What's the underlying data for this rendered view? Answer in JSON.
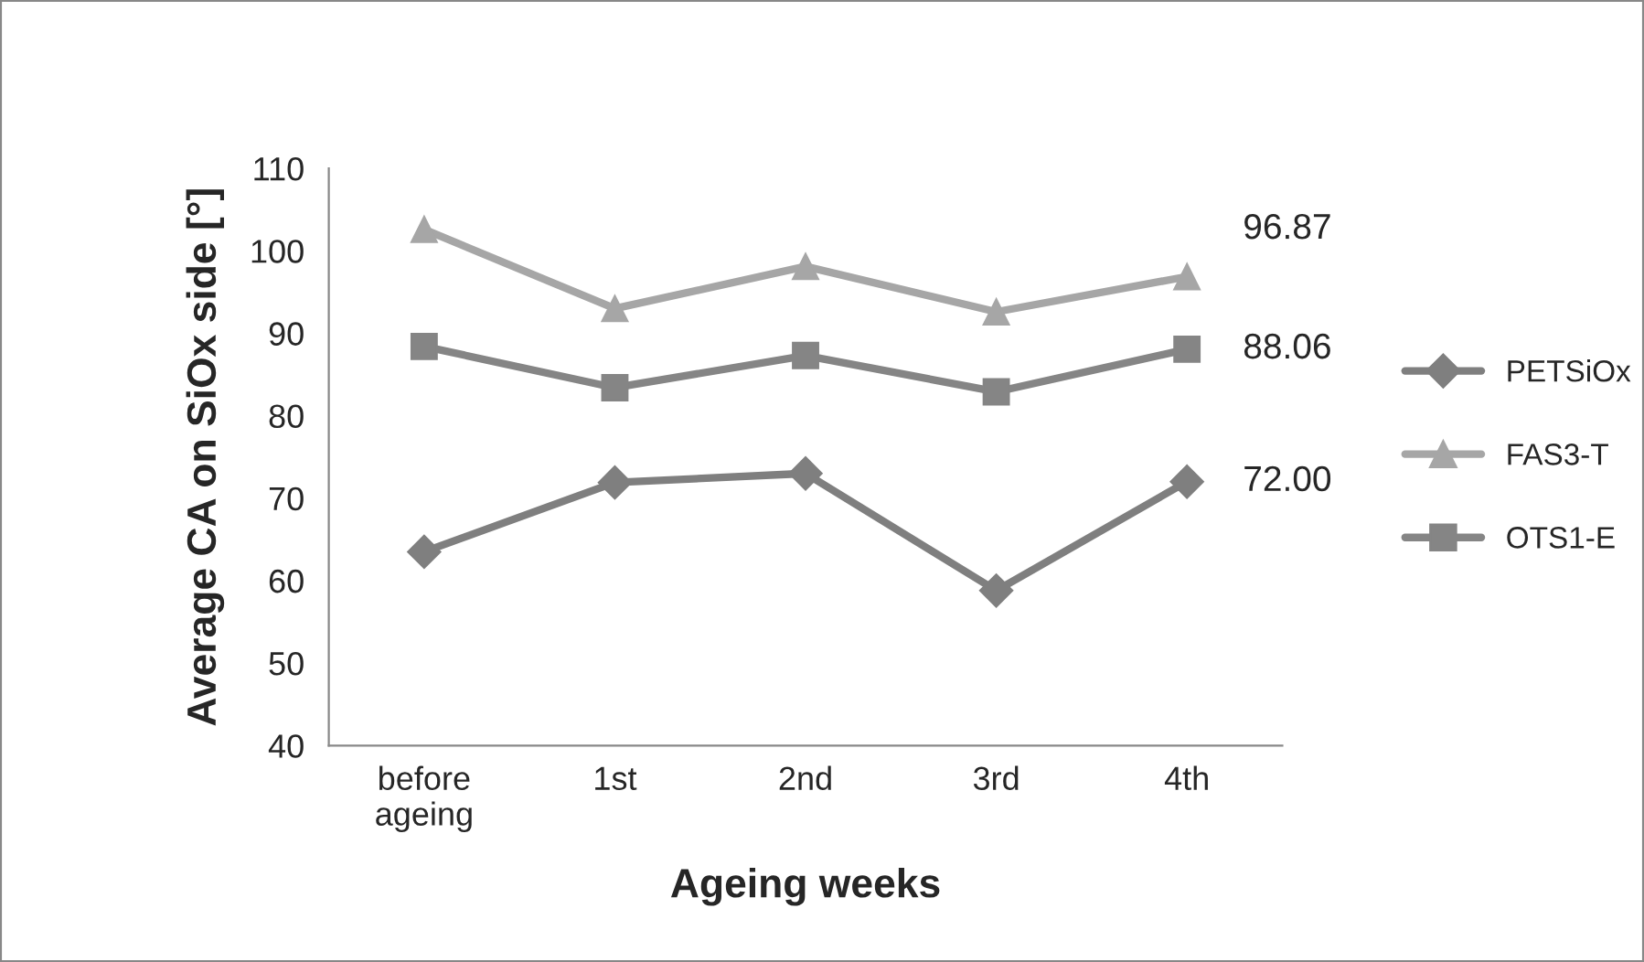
{
  "chart_data": {
    "type": "line",
    "xlabel": "Ageing weeks",
    "ylabel": "Average CA on SiOx side [°]",
    "categories": [
      "before\nageing",
      "1st",
      "2nd",
      "3rd",
      "4th"
    ],
    "ylim": [
      40,
      110
    ],
    "yticks": [
      40,
      50,
      60,
      70,
      80,
      90,
      100,
      110
    ],
    "grid": false,
    "legend": "right",
    "series": [
      {
        "name": "PETSiOx",
        "color": "#7f7f7f",
        "marker": "diamond",
        "values": [
          63.5,
          71.9,
          73.0,
          58.8,
          72.0
        ],
        "value_labels": [
          null,
          null,
          null,
          null,
          "72.00"
        ]
      },
      {
        "name": "FAS3-T",
        "color": "#a6a6a6",
        "marker": "triangle",
        "values": [
          102.6,
          93.0,
          98.1,
          92.6,
          96.87
        ],
        "value_labels": [
          null,
          null,
          null,
          null,
          "96.87"
        ]
      },
      {
        "name": "OTS1-E",
        "color": "#858585",
        "marker": "square",
        "values": [
          88.4,
          83.4,
          87.3,
          82.9,
          88.06
        ],
        "value_labels": [
          null,
          null,
          null,
          null,
          "88.06"
        ]
      }
    ]
  }
}
